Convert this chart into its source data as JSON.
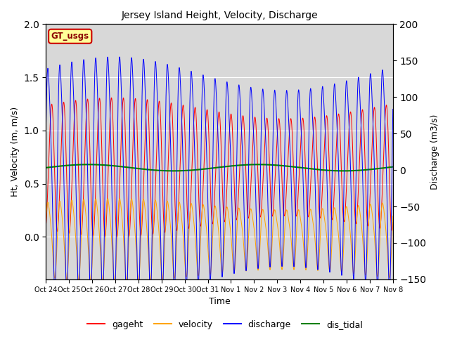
{
  "title": "Jersey Island Height, Velocity, Discharge",
  "xlabel": "Time",
  "ylabel_left": "Ht, Velocity (m, m/s)",
  "ylabel_right": "Discharge (m3/s)",
  "ylim_left": [
    -0.4,
    2.0
  ],
  "ylim_right": [
    -150,
    200
  ],
  "x_ticks": [
    "Oct 24",
    "Oct 25",
    "Oct 26",
    "Oct 27",
    "Oct 28",
    "Oct 29",
    "Oct 30",
    "Oct 31",
    "Nov 1",
    "Nov 2",
    "Nov 3",
    "Nov 4",
    "Nov 5",
    "Nov 6",
    "Nov 7",
    "Nov 8"
  ],
  "n_days": 15,
  "legend_box_label": "GT_usgs",
  "legend_box_color": "#ffff99",
  "legend_box_edge": "#cc0000",
  "background_color": "#d8d8d8",
  "grid_color": "white",
  "tidal_period_hours": 12.4,
  "gageht_mean": 0.65,
  "gageht_amp": 0.55,
  "velocity_amp": 0.32,
  "dis_tidal_mean": 0.65,
  "discharge_scale": 430
}
